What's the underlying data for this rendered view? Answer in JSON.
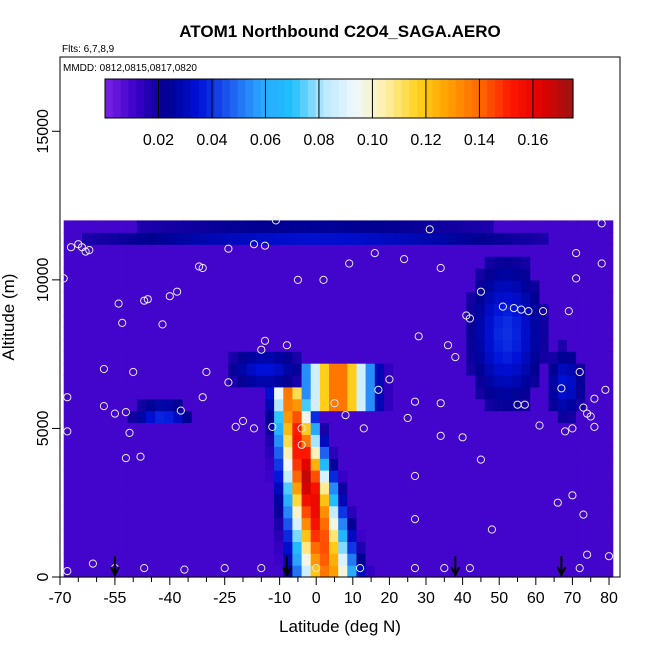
{
  "chart_data": {
    "type": "heatmap",
    "title": "ATOM1 Northbound C2O4_SAGA.AERO",
    "flights_note": "Flts: 6,7,8,9",
    "dates_note": "MMDD: 0812,0815,0817,0820",
    "xlabel": "Latitude (deg N)",
    "ylabel": "Altitude (m)",
    "xlim": [
      -70,
      83
    ],
    "ylim": [
      0,
      17500
    ],
    "x_ticks": [
      -70,
      -55,
      -40,
      -25,
      -10,
      0,
      10,
      20,
      30,
      40,
      50,
      60,
      70,
      80
    ],
    "x_tick_labels": [
      "-70",
      "-55",
      "-40",
      "-25",
      "-10",
      "0",
      "10",
      "20",
      "30",
      "40",
      "50",
      "60",
      "70",
      "80"
    ],
    "x_minor_ticks": [
      -65,
      -60,
      -50,
      -45,
      -35,
      -30,
      -20,
      -15,
      -5,
      5,
      15,
      25,
      35,
      45,
      55,
      65,
      75
    ],
    "y_ticks": [
      0,
      5000,
      10000,
      15000
    ],
    "y_tick_labels": [
      "0",
      "5000",
      "10000",
      "15000"
    ],
    "colorbar": {
      "min": 0.0,
      "max": 0.175,
      "ticks": [
        0.02,
        0.04,
        0.06,
        0.08,
        0.1,
        0.12,
        0.14,
        0.16
      ],
      "tick_labels": [
        "0.02",
        "0.04",
        "0.06",
        "0.08",
        "0.10",
        "0.12",
        "0.14",
        "0.16"
      ],
      "colors": [
        "#7b22e6",
        "#3a00c8",
        "#000090",
        "#0010d8",
        "#1e5cf0",
        "#2aa6ff",
        "#1fc0ff",
        "#b8e8ff",
        "#eef8ff",
        "#fff0a8",
        "#ffd21e",
        "#ffa000",
        "#ff6a00",
        "#ff1800",
        "#e00000",
        "#9a1414"
      ]
    },
    "flight_markers_lat": [
      -55,
      -8,
      38,
      67
    ],
    "grid": false,
    "legend": "none",
    "field": {
      "domain_lat": [
        -69,
        80
      ],
      "domain_alt": [
        0,
        12000
      ],
      "background_value": 0.01,
      "features": [
        {
          "kind": "ridge",
          "lat_base": 3,
          "alt_top": 7200,
          "top_lat": 5,
          "lean": -1.2,
          "width_base": 8,
          "width_top": 4,
          "peak": 0.17
        },
        {
          "kind": "upper_cap",
          "lat_range": [
            -18,
            22
          ],
          "alt_range": [
            5500,
            7200
          ],
          "peak": 0.14
        },
        {
          "kind": "blue_plume",
          "center": [
            -14,
            7000
          ],
          "lat_half": 10,
          "alt_half": 700,
          "peak": 0.025
        },
        {
          "kind": "blue_band",
          "center": [
            0,
            11500
          ],
          "lat_half": 60,
          "alt_half": 400,
          "peak": 0.025
        },
        {
          "kind": "blue_patch",
          "center": [
            52,
            8200
          ],
          "lat_half": 10,
          "alt_half": 2500,
          "peak": 0.03
        },
        {
          "kind": "blue_patch",
          "center": [
            -42,
            5500
          ],
          "lat_half": 8,
          "alt_half": 400,
          "peak": 0.03
        },
        {
          "kind": "blue_patch",
          "center": [
            68,
            6500
          ],
          "lat_half": 5,
          "alt_half": 1200,
          "peak": 0.025
        }
      ]
    },
    "samples": [
      {
        "lat": -68,
        "alt": 200
      },
      {
        "lat": -55,
        "alt": 300
      },
      {
        "lat": -47,
        "alt": 300
      },
      {
        "lat": -36,
        "alt": 250
      },
      {
        "lat": -25,
        "alt": 300
      },
      {
        "lat": -15,
        "alt": 300
      },
      {
        "lat": 0,
        "alt": 300
      },
      {
        "lat": 12,
        "alt": 300
      },
      {
        "lat": 27,
        "alt": 300
      },
      {
        "lat": 35,
        "alt": 300
      },
      {
        "lat": 42,
        "alt": 300
      },
      {
        "lat": 72,
        "alt": 300
      },
      {
        "lat": 80,
        "alt": 700
      },
      {
        "lat": 74,
        "alt": 750
      },
      {
        "lat": 70,
        "alt": 2750
      },
      {
        "lat": 66,
        "alt": 2500
      },
      {
        "lat": 73,
        "alt": 2100
      },
      {
        "lat": 48,
        "alt": 1600
      },
      {
        "lat": 27,
        "alt": 1950
      },
      {
        "lat": 27,
        "alt": 3400
      },
      {
        "lat": 45,
        "alt": 3950
      },
      {
        "lat": 40,
        "alt": 4700
      },
      {
        "lat": 34,
        "alt": 4750
      },
      {
        "lat": 25,
        "alt": 5350
      },
      {
        "lat": 34,
        "alt": 5850
      },
      {
        "lat": 13,
        "alt": 5000
      },
      {
        "lat": 8,
        "alt": 5450
      },
      {
        "lat": 5,
        "alt": 5850
      },
      {
        "lat": 0,
        "alt": 5850
      },
      {
        "lat": -4,
        "alt": 5000
      },
      {
        "lat": -4,
        "alt": 4450
      },
      {
        "lat": -12,
        "alt": 5050
      },
      {
        "lat": -17,
        "alt": 5000
      },
      {
        "lat": -20,
        "alt": 5250
      },
      {
        "lat": -22,
        "alt": 5050
      },
      {
        "lat": -37,
        "alt": 5600
      },
      {
        "lat": -31,
        "alt": 6050
      },
      {
        "lat": -52,
        "alt": 5550
      },
      {
        "lat": -55,
        "alt": 5500
      },
      {
        "lat": -58,
        "alt": 5750
      },
      {
        "lat": -68,
        "alt": 6050
      },
      {
        "lat": -68,
        "alt": 4900
      },
      {
        "lat": -51,
        "alt": 4850
      },
      {
        "lat": -48,
        "alt": 4050
      },
      {
        "lat": -52,
        "alt": 4000
      },
      {
        "lat": -61,
        "alt": 450
      },
      {
        "lat": -58,
        "alt": 7000
      },
      {
        "lat": -50,
        "alt": 6900
      },
      {
        "lat": -42,
        "alt": 8500
      },
      {
        "lat": -40,
        "alt": 9450
      },
      {
        "lat": -38,
        "alt": 9600
      },
      {
        "lat": -30,
        "alt": 6900
      },
      {
        "lat": -24,
        "alt": 6550
      },
      {
        "lat": -15,
        "alt": 7650
      },
      {
        "lat": -8,
        "alt": 7800
      },
      {
        "lat": -14,
        "alt": 7950
      },
      {
        "lat": 20,
        "alt": 6650
      },
      {
        "lat": 17,
        "alt": 6300
      },
      {
        "lat": 27,
        "alt": 5900
      },
      {
        "lat": -62,
        "alt": 11000
      },
      {
        "lat": -64,
        "alt": 11100
      },
      {
        "lat": -63,
        "alt": 10950
      },
      {
        "lat": -65,
        "alt": 11200
      },
      {
        "lat": -67,
        "alt": 11100
      },
      {
        "lat": -69,
        "alt": 10050
      },
      {
        "lat": -54,
        "alt": 9200
      },
      {
        "lat": -53,
        "alt": 8550
      },
      {
        "lat": -47,
        "alt": 9300
      },
      {
        "lat": -46,
        "alt": 9350
      },
      {
        "lat": -32,
        "alt": 10450
      },
      {
        "lat": -31,
        "alt": 10400
      },
      {
        "lat": -24,
        "alt": 11050
      },
      {
        "lat": -17,
        "alt": 11200
      },
      {
        "lat": -14,
        "alt": 11150
      },
      {
        "lat": -11,
        "alt": 12000
      },
      {
        "lat": -5,
        "alt": 10000
      },
      {
        "lat": 2,
        "alt": 10000
      },
      {
        "lat": 9,
        "alt": 10550
      },
      {
        "lat": 16,
        "alt": 10900
      },
      {
        "lat": 24,
        "alt": 10700
      },
      {
        "lat": 34,
        "alt": 10400
      },
      {
        "lat": 31,
        "alt": 11700
      },
      {
        "lat": 45,
        "alt": 9600
      },
      {
        "lat": 41,
        "alt": 8800
      },
      {
        "lat": 51,
        "alt": 9100
      },
      {
        "lat": 54,
        "alt": 9050
      },
      {
        "lat": 56,
        "alt": 9000
      },
      {
        "lat": 58,
        "alt": 8950
      },
      {
        "lat": 62,
        "alt": 8950
      },
      {
        "lat": 69,
        "alt": 8950
      },
      {
        "lat": 71,
        "alt": 10050
      },
      {
        "lat": 78,
        "alt": 10550
      },
      {
        "lat": 78,
        "alt": 11900
      },
      {
        "lat": 71,
        "alt": 10900
      },
      {
        "lat": 28,
        "alt": 8100
      },
      {
        "lat": 36,
        "alt": 7800
      },
      {
        "lat": 42,
        "alt": 8700
      },
      {
        "lat": 38,
        "alt": 7400
      },
      {
        "lat": 55,
        "alt": 5800
      },
      {
        "lat": 67,
        "alt": 6350
      },
      {
        "lat": 72,
        "alt": 6900
      },
      {
        "lat": 76,
        "alt": 6000
      },
      {
        "lat": 79,
        "alt": 6300
      },
      {
        "lat": 73,
        "alt": 5700
      },
      {
        "lat": 74,
        "alt": 5500
      },
      {
        "lat": 75,
        "alt": 5400
      },
      {
        "lat": 76,
        "alt": 5050
      },
      {
        "lat": 70,
        "alt": 5000
      },
      {
        "lat": 68,
        "alt": 4900
      },
      {
        "lat": 61,
        "alt": 5100
      },
      {
        "lat": 57,
        "alt": 5800
      }
    ]
  }
}
